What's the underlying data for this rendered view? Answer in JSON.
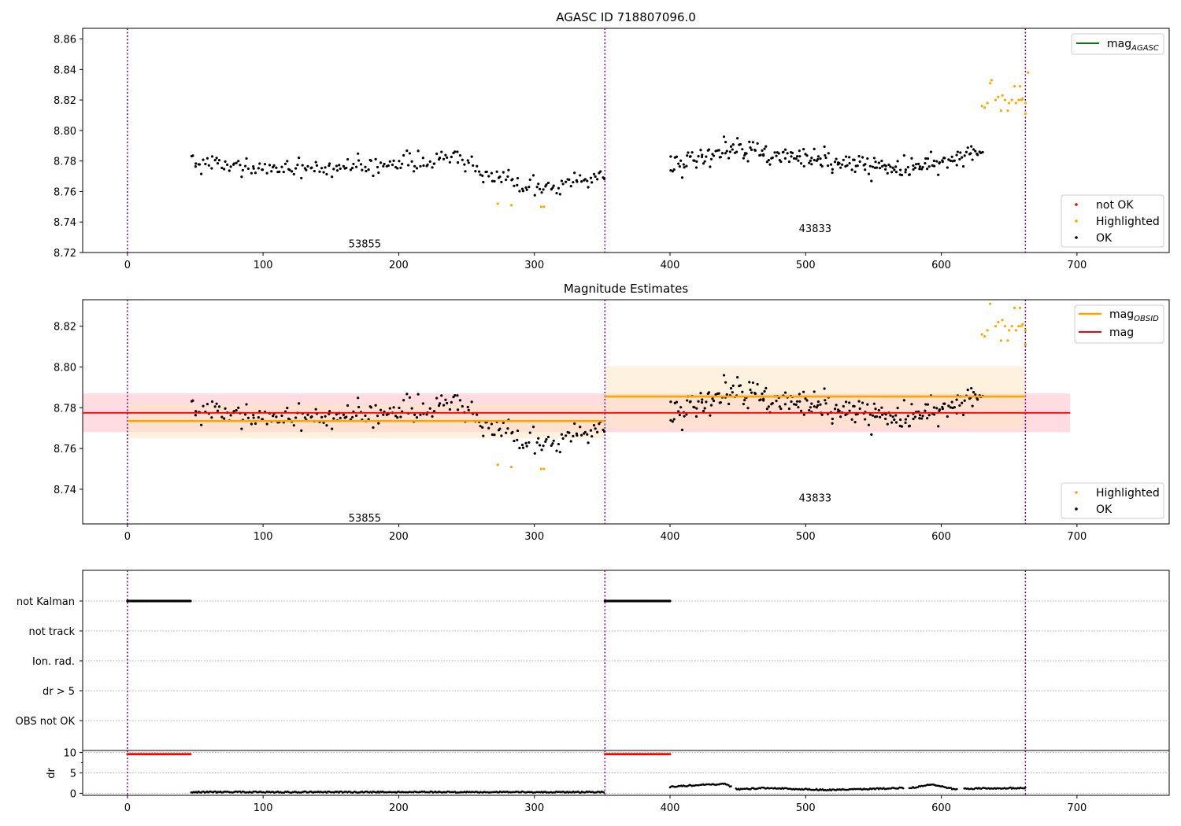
{
  "chart_data": [
    {
      "type": "scatter",
      "title": "AGASC ID 718807096.0",
      "xlim": [
        -33,
        768
      ],
      "ylim": [
        8.72,
        8.867
      ],
      "xticks": [
        0,
        100,
        200,
        300,
        400,
        500,
        600,
        700
      ],
      "yticks": [
        8.72,
        8.74,
        8.76,
        8.78,
        8.8,
        8.82,
        8.84,
        8.86
      ],
      "obs_boundaries": [
        0,
        352,
        662
      ],
      "obsid_labels": [
        {
          "text": "53855",
          "x": 175,
          "y": 8.726
        },
        {
          "text": "43833",
          "x": 507,
          "y": 8.736
        }
      ],
      "legend_top": [
        {
          "label": "mag",
          "sub": "AGASC",
          "color": "#008000"
        }
      ],
      "legend_bottom": [
        {
          "label": "not OK",
          "color": "#ff0000"
        },
        {
          "label": "Highlighted",
          "color": "#ffa500"
        },
        {
          "label": "OK",
          "color": "#000000"
        }
      ],
      "series": [
        {
          "name": "OK",
          "color": "#000000",
          "segments": [
            {
              "x0": 47,
              "x1": 352,
              "n": 230,
              "trend": [
                [
                  47,
                  8.778
                ],
                [
                  150,
                  8.775
                ],
                [
                  240,
                  8.782
                ],
                [
                  280,
                  8.768
                ],
                [
                  310,
                  8.762
                ],
                [
                  352,
                  8.772
                ]
              ],
              "noise": 0.011
            },
            {
              "x0": 400,
              "x1": 630,
              "n": 240,
              "trend": [
                [
                  400,
                  8.776
                ],
                [
                  440,
                  8.788
                ],
                [
                  500,
                  8.782
                ],
                [
                  570,
                  8.774
                ],
                [
                  630,
                  8.786
                ]
              ],
              "noise": 0.012
            }
          ]
        },
        {
          "name": "Highlighted",
          "color": "#ffa500",
          "points": [
            [
              273,
              8.752
            ],
            [
              283,
              8.751
            ],
            [
              305,
              8.75
            ],
            [
              307,
              8.75
            ],
            [
              630,
              8.816
            ],
            [
              632,
              8.815
            ],
            [
              634,
              8.818
            ],
            [
              636,
              8.831
            ],
            [
              637,
              8.833
            ],
            [
              640,
              8.82
            ],
            [
              642,
              8.822
            ],
            [
              644,
              8.813
            ],
            [
              645,
              8.823
            ],
            [
              647,
              8.82
            ],
            [
              649,
              8.813
            ],
            [
              650,
              8.818
            ],
            [
              652,
              8.82
            ],
            [
              654,
              8.829
            ],
            [
              655,
              8.818
            ],
            [
              657,
              8.82
            ],
            [
              658,
              8.829
            ],
            [
              660,
              8.821
            ],
            [
              662,
              8.818
            ],
            [
              664,
              8.838
            ],
            [
              662,
              8.811
            ],
            [
              659,
              8.82
            ]
          ]
        }
      ]
    },
    {
      "type": "scatter",
      "title": "Magnitude Estimates",
      "xlim": [
        -33,
        768
      ],
      "ylim": [
        8.723,
        8.833
      ],
      "xticks": [
        0,
        100,
        200,
        300,
        400,
        500,
        600,
        700
      ],
      "yticks": [
        8.74,
        8.76,
        8.78,
        8.8,
        8.82
      ],
      "obs_boundaries": [
        0,
        352,
        662
      ],
      "obsid_labels": [
        {
          "text": "53855",
          "x": 175,
          "y": 8.726
        },
        {
          "text": "43833",
          "x": 507,
          "y": 8.736
        }
      ],
      "lines": [
        {
          "name": "mag",
          "color": "#ff0000",
          "x": [
            -33,
            695
          ],
          "y": 8.7775,
          "band": [
            8.768,
            8.787
          ],
          "band_color": "#ffc0cb"
        },
        {
          "name": "mag OBSID 53855",
          "color": "#ffa500",
          "x": [
            0,
            352
          ],
          "y": 8.7735,
          "band": [
            8.765,
            8.782
          ],
          "band_color": "#fde6c2"
        },
        {
          "name": "mag OBSID 43833",
          "color": "#ffa500",
          "x": [
            352,
            662
          ],
          "y": 8.7855,
          "band": [
            8.77,
            8.8005
          ],
          "band_color": "#fde6c2"
        }
      ],
      "legend_top": [
        {
          "label": "mag",
          "sub": "OBSID",
          "color": "#ffa500"
        },
        {
          "label": "mag",
          "sub": "",
          "color": "#ff0000"
        }
      ],
      "legend_bottom": [
        {
          "label": "Highlighted",
          "color": "#ffa500"
        },
        {
          "label": "OK",
          "color": "#000000"
        }
      ]
    },
    {
      "type": "scatter",
      "title": "",
      "xlim": [
        -33,
        768
      ],
      "flag_labels": [
        "not Kalman",
        "not track",
        "Ion. rad.",
        "dr > 5",
        "OBS not OK"
      ],
      "flag_segments": [
        {
          "flag": "not Kalman",
          "x0": 0,
          "x1": 47
        },
        {
          "flag": "not Kalman",
          "x0": 352,
          "x1": 400
        }
      ],
      "obs_boundaries": [
        0,
        352,
        662
      ]
    },
    {
      "type": "scatter",
      "title": "",
      "ylabel": "dr",
      "xlim": [
        -33,
        768
      ],
      "ylim": [
        -0.5,
        10.5
      ],
      "yticks": [
        0,
        5,
        10
      ],
      "xticks": [
        0,
        100,
        200,
        300,
        400,
        500,
        600,
        700
      ],
      "red_segments": [
        [
          0,
          47,
          9.6
        ],
        [
          352,
          400,
          9.6
        ]
      ],
      "dr_segments": [
        {
          "x0": 47,
          "x1": 352,
          "level": 0.3,
          "noise": 0.3
        },
        {
          "x0": 400,
          "x1": 662,
          "trend": [
            [
              400,
              1.6
            ],
            [
              420,
              2.0
            ],
            [
              440,
              2.3
            ],
            [
              450,
              1.0
            ],
            [
              470,
              1.3
            ],
            [
              520,
              0.8
            ],
            [
              580,
              1.4
            ],
            [
              593,
              2.2
            ],
            [
              610,
              1.0
            ],
            [
              630,
              1.2
            ],
            [
              662,
              1.3
            ]
          ],
          "noise": 0.3
        }
      ],
      "obs_boundaries": [
        0,
        352,
        662
      ]
    }
  ]
}
